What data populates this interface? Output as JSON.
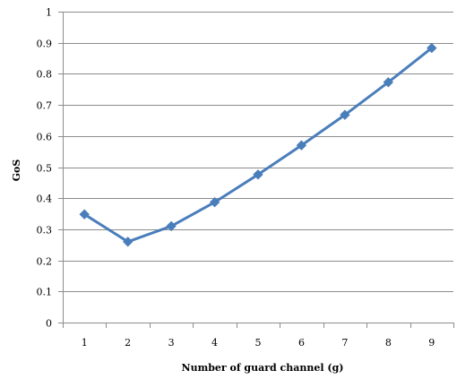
{
  "chart_data": {
    "type": "line",
    "xlabel": "Number of guard channel (g)",
    "ylabel": "GoS",
    "categories": [
      "1",
      "2",
      "3",
      "4",
      "5",
      "6",
      "7",
      "8",
      "9"
    ],
    "x": [
      1,
      2,
      3,
      4,
      5,
      6,
      7,
      8,
      9
    ],
    "series": [
      {
        "values": [
          0.348,
          0.26,
          0.31,
          0.387,
          0.476,
          0.57,
          0.668,
          0.773,
          0.883
        ],
        "color": "#4a7ebb",
        "marker": "diamond"
      }
    ],
    "ylim": [
      0,
      1
    ],
    "yticks": [
      "0",
      "0.1",
      "0.2",
      "0.3",
      "0.4",
      "0.5",
      "0.6",
      "0.7",
      "0.8",
      "0.9",
      "1"
    ],
    "grid": "horizontal",
    "legend": "none"
  }
}
